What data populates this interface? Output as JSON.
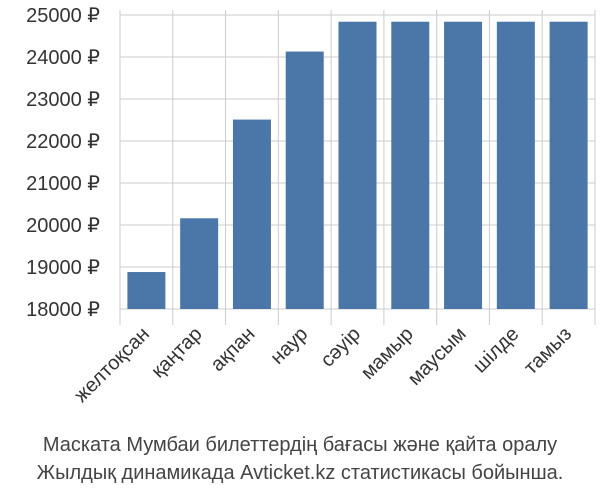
{
  "chart_data": {
    "type": "bar",
    "categories": [
      "желтоқсан",
      "қаңтар",
      "ақпан",
      "наур",
      "сәуір",
      "мамыр",
      "маусым",
      "шілде",
      "тамыз"
    ],
    "values": [
      18880,
      20160,
      22510,
      24130,
      24840,
      24840,
      24840,
      24840,
      24840
    ],
    "ylim": [
      18000,
      25000
    ],
    "yticks": [
      "18000 ₽",
      "19000 ₽",
      "20000 ₽",
      "21000 ₽",
      "22000 ₽",
      "23000 ₽",
      "24000 ₽",
      "25000 ₽"
    ],
    "ytick_values": [
      18000,
      19000,
      20000,
      21000,
      22000,
      23000,
      24000,
      25000
    ],
    "grid": true,
    "bar_color": "#4a76a8",
    "grid_color": "#cccccc"
  },
  "caption": {
    "line1": "Маската Мумбаи билеттердің бағасы және қайта оралу",
    "line2": "Жылдық динамикада Avticket.kz статистикасы бойынша."
  }
}
